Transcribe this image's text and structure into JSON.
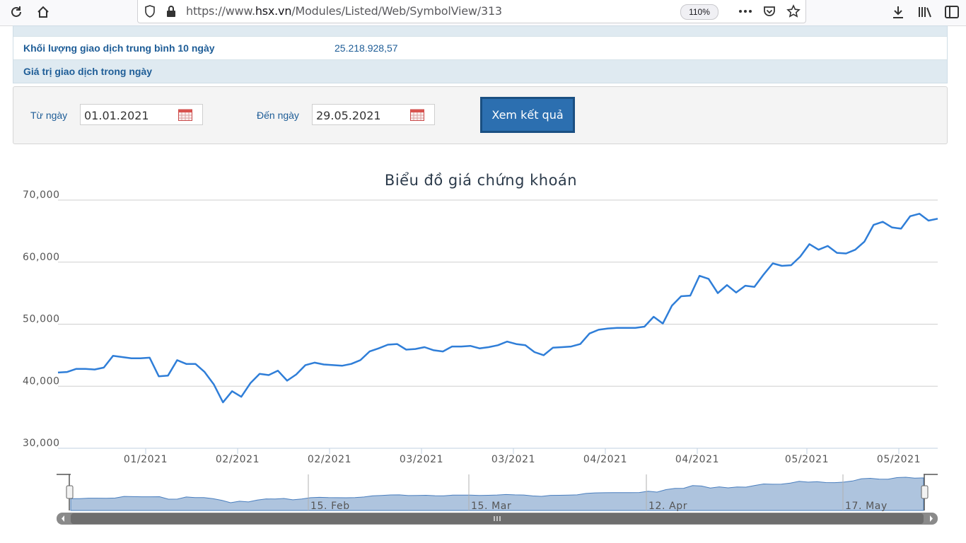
{
  "browser": {
    "url_prefix": "https://www.",
    "url_host": "hsx.vn",
    "url_path": "/Modules/Listed/Web/SymbolView/313",
    "zoom": "110%"
  },
  "info_rows": [
    {
      "label": "Khối lượng giao dịch trung bình 10 ngày",
      "value": "25.218.928,57"
    },
    {
      "label": "Giá trị giao dịch trong ngày",
      "value": ""
    }
  ],
  "filter": {
    "from_label": "Từ ngày",
    "from_value": "01.01.2021",
    "to_label": "Đến ngày",
    "to_value": "29.05.2021",
    "submit_label": "Xem kết quả"
  },
  "chart_data": {
    "type": "line",
    "title": "Biểu đồ giá chứng khoán",
    "xlabel": "",
    "ylabel": "",
    "ylim": [
      30000,
      70000
    ],
    "y_ticks": [
      {
        "value": 70000,
        "label": "70,000"
      },
      {
        "value": 60000,
        "label": "60,000"
      },
      {
        "value": 50000,
        "label": "50,000"
      },
      {
        "value": 40000,
        "label": "40,000"
      },
      {
        "value": 30000,
        "label": "30,000"
      }
    ],
    "x_tick_labels": [
      "01/2021",
      "02/2021",
      "02/2021",
      "03/2021",
      "03/2021",
      "04/2021",
      "04/2021",
      "05/2021",
      "05/2021"
    ],
    "line_color": "#2f7ed8",
    "grid": true,
    "series": [
      {
        "values": [
          42200,
          42300,
          42800,
          42800,
          42700,
          43000,
          44900,
          44700,
          44500,
          44500,
          44600,
          41600,
          41700,
          44200,
          43600,
          43600,
          42300,
          40300,
          37400,
          39200,
          38300,
          40500,
          42000,
          41800,
          42500,
          40900,
          41900,
          43400,
          43800,
          43500,
          43400,
          43300,
          43600,
          44200,
          45600,
          46100,
          46700,
          46800,
          45900,
          46000,
          46300,
          45800,
          45600,
          46400,
          46400,
          46500,
          46100,
          46300,
          46600,
          47200,
          46800,
          46600,
          45500,
          45000,
          46200,
          46300,
          46400,
          46800,
          48500,
          49100,
          49300,
          49400,
          49400,
          49400,
          49600,
          51200,
          50100,
          53000,
          54500,
          54600,
          57800,
          57300,
          55000,
          56300,
          55100,
          56200,
          56000,
          58000,
          59800,
          59400,
          59500,
          60900,
          62900,
          62000,
          62600,
          61500,
          61400,
          62000,
          63300,
          66000,
          66500,
          65600,
          65400,
          67400,
          67800,
          66700,
          67000
        ]
      }
    ],
    "navigator": {
      "labels": [
        "15. Feb",
        "15. Mar",
        "12. Apr",
        "17. May"
      ]
    }
  }
}
